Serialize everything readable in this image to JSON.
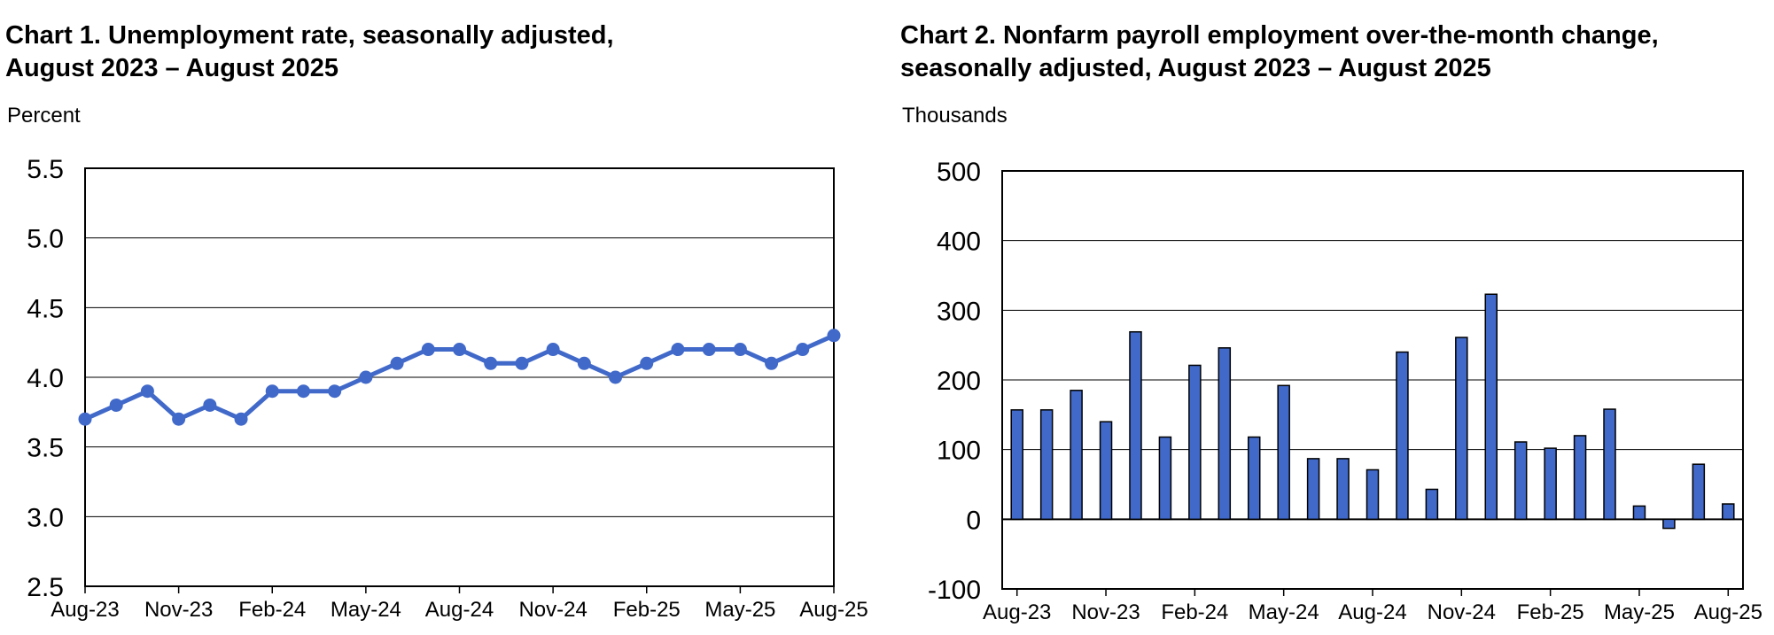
{
  "chart_data": [
    {
      "type": "line",
      "title": "Chart 1. Unemployment rate, seasonally adjusted,\nAugust 2023 – August 2025",
      "ylabel": "Percent",
      "ylim": [
        2.5,
        5.5
      ],
      "yticks": [
        "5.5",
        "5.0",
        "4.5",
        "4.0",
        "3.5",
        "3.0",
        "2.5"
      ],
      "x_tick_labels": [
        "Aug-23",
        "Nov-23",
        "Feb-24",
        "May-24",
        "Aug-24",
        "Nov-24",
        "Feb-25",
        "May-25",
        "Aug-25"
      ],
      "categories": [
        "Aug-23",
        "Sep-23",
        "Oct-23",
        "Nov-23",
        "Dec-23",
        "Jan-24",
        "Feb-24",
        "Mar-24",
        "Apr-24",
        "May-24",
        "Jun-24",
        "Jul-24",
        "Aug-24",
        "Sep-24",
        "Oct-24",
        "Nov-24",
        "Dec-24",
        "Jan-25",
        "Feb-25",
        "Mar-25",
        "Apr-25",
        "May-25",
        "Jun-25",
        "Jul-25",
        "Aug-25"
      ],
      "values": [
        3.7,
        3.8,
        3.9,
        3.7,
        3.8,
        3.7,
        3.9,
        3.9,
        3.9,
        4.0,
        4.1,
        4.2,
        4.2,
        4.1,
        4.1,
        4.2,
        4.1,
        4.0,
        4.1,
        4.2,
        4.2,
        4.2,
        4.1,
        4.2,
        4.3
      ],
      "color": "#4169c9",
      "grid": true
    },
    {
      "type": "bar",
      "title": "Chart 2. Nonfarm payroll employment over-the-month change,\nseasonally adjusted, August 2023 – August 2025",
      "ylabel": "Thousands",
      "ylim": [
        -100,
        500
      ],
      "yticks": [
        "500",
        "400",
        "300",
        "200",
        "100",
        "0",
        "-100"
      ],
      "x_tick_labels": [
        "Aug-23",
        "Nov-23",
        "Feb-24",
        "May-24",
        "Aug-24",
        "Nov-24",
        "Feb-25",
        "May-25",
        "Aug-25"
      ],
      "categories": [
        "Aug-23",
        "Sep-23",
        "Oct-23",
        "Nov-23",
        "Dec-23",
        "Jan-24",
        "Feb-24",
        "Mar-24",
        "Apr-24",
        "May-24",
        "Jun-24",
        "Jul-24",
        "Aug-24",
        "Sep-24",
        "Oct-24",
        "Nov-24",
        "Dec-24",
        "Jan-25",
        "Feb-25",
        "Mar-25",
        "Apr-25",
        "May-25",
        "Jun-25",
        "Jul-25",
        "Aug-25"
      ],
      "values": [
        157,
        157,
        185,
        140,
        269,
        118,
        221,
        246,
        118,
        192,
        87,
        87,
        71,
        240,
        43,
        261,
        323,
        111,
        102,
        120,
        158,
        19,
        -13,
        79,
        22
      ],
      "color": "#4169c9",
      "grid": true
    }
  ]
}
